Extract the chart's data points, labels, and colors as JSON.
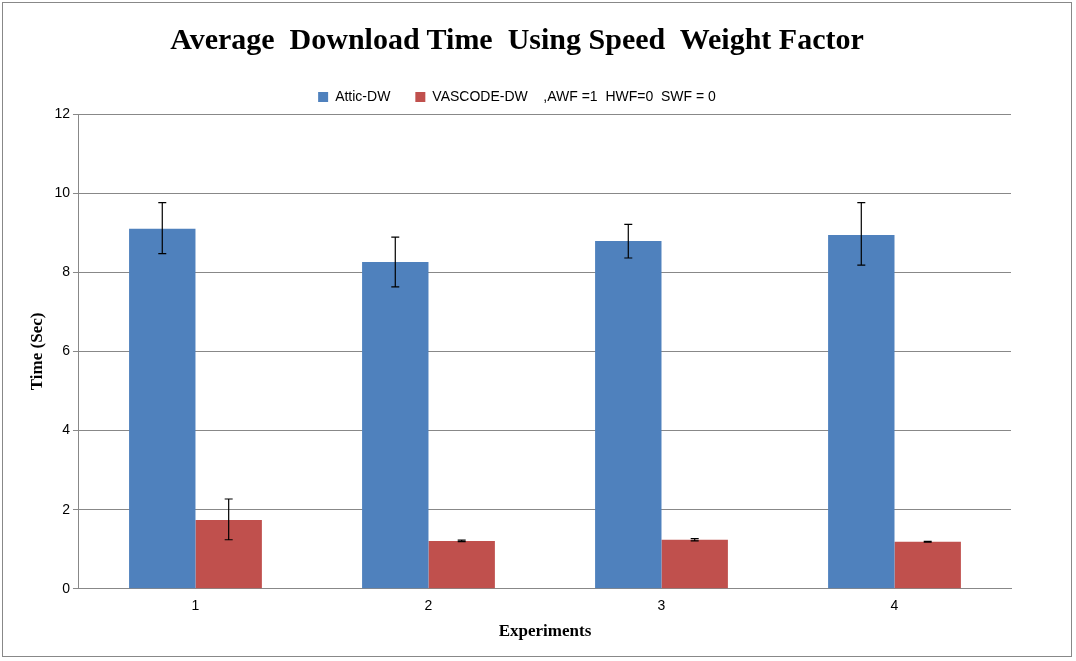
{
  "chart_data": {
    "type": "bar",
    "title": "Average  Download Time  Using Speed  Weight Factor",
    "xlabel": "Experiments",
    "ylabel": "Time (Sec)",
    "categories": [
      "1",
      "2",
      "3",
      "4"
    ],
    "series": [
      {
        "name": "Attic-DW",
        "color": "#4f81bd",
        "values": [
          9.1,
          8.26,
          8.79,
          8.94
        ],
        "errors": [
          [
            8.47,
            9.76
          ],
          [
            7.63,
            8.89
          ],
          [
            8.36,
            9.21
          ],
          [
            8.18,
            9.76
          ]
        ]
      },
      {
        "name": "VASCODE-DW    ,AWF =1  HWF=0  SWF = 0",
        "color": "#c0504d",
        "values": [
          1.74,
          1.21,
          1.24,
          1.19
        ],
        "errors": [
          [
            1.24,
            2.27
          ],
          [
            1.19,
            1.23
          ],
          [
            1.21,
            1.27
          ],
          [
            1.18,
            1.2
          ]
        ]
      }
    ],
    "ylim": [
      0,
      12
    ],
    "yticks": [
      0,
      2,
      4,
      6,
      8,
      10,
      12
    ],
    "grid": "y",
    "legend": "top"
  }
}
